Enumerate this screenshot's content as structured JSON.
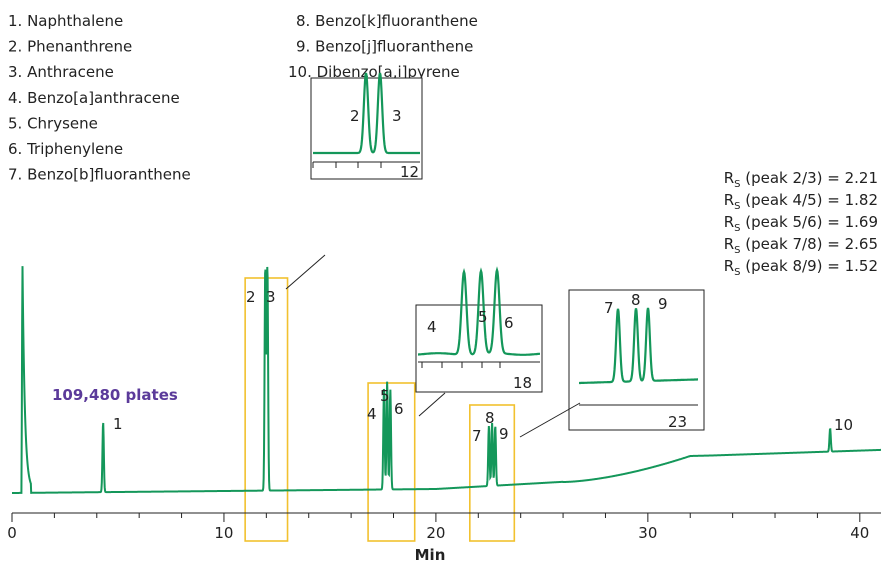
{
  "colors": {
    "trace": "#14975a",
    "highlight": "#f2c12e",
    "plates_text": "#5b3a9a",
    "axis": "#222222"
  },
  "plates_label": "109,480 plates",
  "legend_left": [
    "1.  Naphthalene",
    "2.  Phenanthrene",
    "3.  Anthracene",
    "4.  Benzo[a]anthracene",
    "5.  Chrysene",
    "6.  Triphenylene",
    "7.  Benzo[b]fluoranthene"
  ],
  "legend_right": [
    "8. Benzo[k]fluoranthene",
    "9. Benzo[j]fluoranthene",
    "10. Dibenzo[a,i]pyrene"
  ],
  "resolution": [
    {
      "pair": "peak 2/3",
      "value": "2.21"
    },
    {
      "pair": "peak 4/5",
      "value": "1.82"
    },
    {
      "pair": "peak 5/6",
      "value": "1.69"
    },
    {
      "pair": "peak 7/8",
      "value": "2.65"
    },
    {
      "pair": "peak 8/9",
      "value": "1.52"
    }
  ],
  "rs_symbol": "R",
  "rs_sub": "S",
  "peak_labels": [
    {
      "text": "1",
      "peak": "1"
    },
    {
      "text": "2",
      "peak": "2"
    },
    {
      "text": "3",
      "peak": "3"
    },
    {
      "text": "4",
      "peak": "4"
    },
    {
      "text": "5",
      "peak": "5"
    },
    {
      "text": "6",
      "peak": "6"
    },
    {
      "text": "7",
      "peak": "7"
    },
    {
      "text": "8",
      "peak": "8"
    },
    {
      "text": "9",
      "peak": "9"
    },
    {
      "text": "10",
      "peak": "10"
    }
  ],
  "insets": [
    {
      "peaks": [
        "2",
        "3"
      ],
      "tick_label": "12"
    },
    {
      "peaks": [
        "4",
        "5",
        "6"
      ],
      "tick_label": "18"
    },
    {
      "peaks": [
        "7",
        "8",
        "9"
      ],
      "tick_label": "23"
    }
  ],
  "chart_data": {
    "type": "line",
    "xlabel": "Min",
    "ylabel": "",
    "xlim": [
      0,
      41
    ],
    "x_ticks": [
      0,
      10,
      20,
      30,
      40
    ],
    "grid": false,
    "series": [
      {
        "peaks": [
          {
            "label": "1",
            "rt": 4.3
          },
          {
            "label": "2",
            "rt": 11.95
          },
          {
            "label": "3",
            "rt": 12.05
          },
          {
            "label": "4",
            "rt": 17.55
          },
          {
            "label": "5",
            "rt": 17.7
          },
          {
            "label": "6",
            "rt": 17.85
          },
          {
            "label": "7",
            "rt": 22.5
          },
          {
            "label": "8",
            "rt": 22.65
          },
          {
            "label": "9",
            "rt": 22.8
          },
          {
            "label": "10",
            "rt": 38.6
          }
        ]
      }
    ],
    "highlight_windows": [
      [
        11,
        13
      ],
      [
        16.8,
        19
      ],
      [
        21.6,
        23.7
      ]
    ]
  }
}
